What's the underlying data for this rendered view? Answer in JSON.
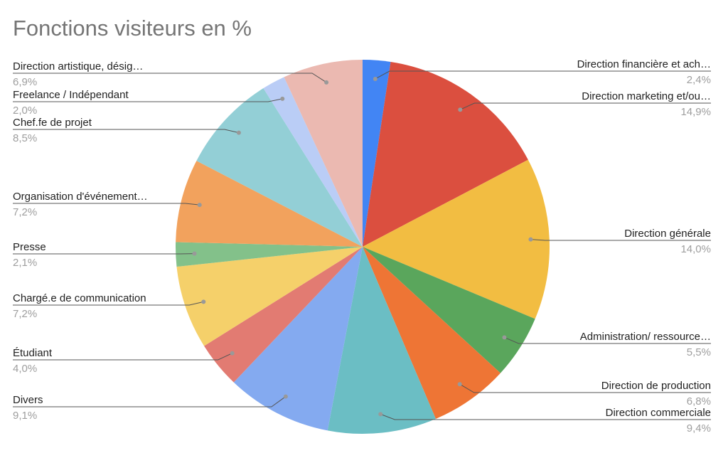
{
  "chart_data": {
    "type": "pie",
    "title": "Fonctions visiteurs en %",
    "legend": "labels with leader lines",
    "slices": [
      {
        "label": "Direction financière et ach…",
        "value": 2.4,
        "display": "2,4%",
        "color": "#4285f4"
      },
      {
        "label": "Direction marketing et/ou…",
        "value": 14.9,
        "display": "14,9%",
        "color": "#db4f3f"
      },
      {
        "label": "Direction générale",
        "value": 14.0,
        "display": "14,0%",
        "color": "#f2bd42"
      },
      {
        "label": "Administration/ ressource…",
        "value": 5.5,
        "display": "5,5%",
        "color": "#5aa65c"
      },
      {
        "label": "Direction de production",
        "value": 6.8,
        "display": "6,8%",
        "color": "#ee7535"
      },
      {
        "label": "Direction commerciale",
        "value": 9.4,
        "display": "9,4%",
        "color": "#6bbec4"
      },
      {
        "label": "Divers",
        "value": 9.1,
        "display": "9,1%",
        "color": "#84aaf0"
      },
      {
        "label": "Étudiant",
        "value": 4.0,
        "display": "4,0%",
        "color": "#e27b72"
      },
      {
        "label": "Chargé.e de communication",
        "value": 7.2,
        "display": "7,2%",
        "color": "#f5d06a"
      },
      {
        "label": "Presse",
        "value": 2.1,
        "display": "2,1%",
        "color": "#83c18a"
      },
      {
        "label": "Organisation d'événement…",
        "value": 7.2,
        "display": "7,2%",
        "color": "#f2a25d"
      },
      {
        "label": "Chef.fe de projet",
        "value": 8.5,
        "display": "8,5%",
        "color": "#93cfd6"
      },
      {
        "label": "Freelance / Indépendant",
        "value": 2.0,
        "display": "2,0%",
        "color": "#bacdf6"
      },
      {
        "label": "Direction artistique, désig…",
        "value": 6.9,
        "display": "6,9%",
        "color": "#ebb9b1"
      }
    ]
  }
}
